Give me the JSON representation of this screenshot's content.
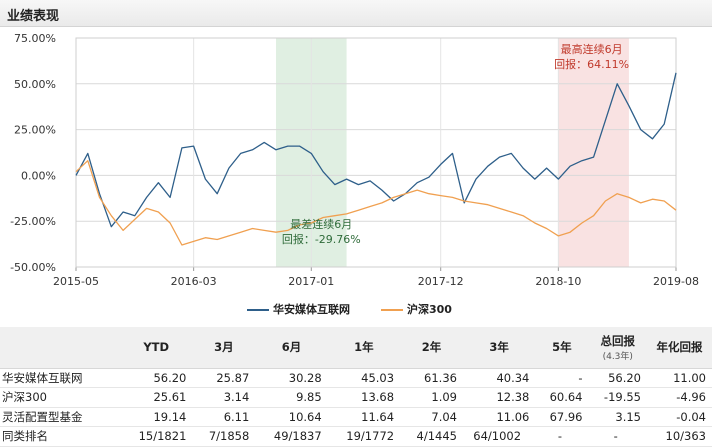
{
  "section_title": "业绩表现",
  "chart_data": {
    "type": "line",
    "y_ticks": [
      "75.00%",
      "50.00%",
      "25.00%",
      "0.00%",
      "-25.00%",
      "-50.00%"
    ],
    "y_tick_values": [
      75,
      50,
      25,
      0,
      -25,
      -50
    ],
    "ylim": [
      -50,
      75
    ],
    "x_ticks": [
      "2015-05",
      "2016-03",
      "2017-01",
      "2017-12",
      "2018-10",
      "2019-08"
    ],
    "x_tick_values": [
      "2015-05",
      "2016-03",
      "2017-01",
      "2017-12",
      "2018-10",
      "2019-08"
    ],
    "xlim": [
      "2015-05",
      "2019-08"
    ],
    "grid": true,
    "legend_position": "bottom",
    "series": [
      {
        "name": "华安媒体互联网",
        "color": "#2e5f8a",
        "points": [
          [
            "2015-05",
            0
          ],
          [
            "2015-06",
            12
          ],
          [
            "2015-07",
            -10
          ],
          [
            "2015-08",
            -28
          ],
          [
            "2015-09",
            -20
          ],
          [
            "2015-10",
            -22
          ],
          [
            "2015-11",
            -12
          ],
          [
            "2015-12",
            -4
          ],
          [
            "2016-01",
            -12
          ],
          [
            "2016-02",
            15
          ],
          [
            "2016-03",
            16
          ],
          [
            "2016-04",
            -2
          ],
          [
            "2016-05",
            -10
          ],
          [
            "2016-06",
            4
          ],
          [
            "2016-07",
            12
          ],
          [
            "2016-08",
            14
          ],
          [
            "2016-09",
            18
          ],
          [
            "2016-10",
            14
          ],
          [
            "2016-11",
            16
          ],
          [
            "2016-12",
            16
          ],
          [
            "2017-01",
            12
          ],
          [
            "2017-02",
            2
          ],
          [
            "2017-03",
            -5
          ],
          [
            "2017-04",
            -2
          ],
          [
            "2017-05",
            -5
          ],
          [
            "2017-06",
            -3
          ],
          [
            "2017-07",
            -8
          ],
          [
            "2017-08",
            -14
          ],
          [
            "2017-09",
            -10
          ],
          [
            "2017-10",
            -4
          ],
          [
            "2017-11",
            -1
          ],
          [
            "2017-12",
            6
          ],
          [
            "2018-01",
            12
          ],
          [
            "2018-02",
            -15
          ],
          [
            "2018-03",
            -2
          ],
          [
            "2018-04",
            5
          ],
          [
            "2018-05",
            10
          ],
          [
            "2018-06",
            12
          ],
          [
            "2018-07",
            4
          ],
          [
            "2018-08",
            -2
          ],
          [
            "2018-09",
            4
          ],
          [
            "2018-10",
            -2
          ],
          [
            "2018-11",
            5
          ],
          [
            "2018-12",
            8
          ],
          [
            "2019-01",
            10
          ],
          [
            "2019-02",
            30
          ],
          [
            "2019-03",
            50
          ],
          [
            "2019-04",
            38
          ],
          [
            "2019-05",
            25
          ],
          [
            "2019-06",
            20
          ],
          [
            "2019-07",
            28
          ],
          [
            "2019-08",
            56
          ]
        ]
      },
      {
        "name": "沪深300",
        "color": "#f0a050",
        "points": [
          [
            "2015-05",
            2
          ],
          [
            "2015-06",
            8
          ],
          [
            "2015-07",
            -12
          ],
          [
            "2015-08",
            -22
          ],
          [
            "2015-09",
            -30
          ],
          [
            "2015-10",
            -24
          ],
          [
            "2015-11",
            -18
          ],
          [
            "2015-12",
            -20
          ],
          [
            "2016-01",
            -26
          ],
          [
            "2016-02",
            -38
          ],
          [
            "2016-03",
            -36
          ],
          [
            "2016-04",
            -34
          ],
          [
            "2016-05",
            -35
          ],
          [
            "2016-06",
            -33
          ],
          [
            "2016-07",
            -31
          ],
          [
            "2016-08",
            -29
          ],
          [
            "2016-09",
            -30
          ],
          [
            "2016-10",
            -31
          ],
          [
            "2016-11",
            -30
          ],
          [
            "2016-12",
            -27
          ],
          [
            "2017-01",
            -26
          ],
          [
            "2017-02",
            -23
          ],
          [
            "2017-03",
            -22
          ],
          [
            "2017-04",
            -21
          ],
          [
            "2017-05",
            -19
          ],
          [
            "2017-06",
            -17
          ],
          [
            "2017-07",
            -15
          ],
          [
            "2017-08",
            -12
          ],
          [
            "2017-09",
            -10
          ],
          [
            "2017-10",
            -8
          ],
          [
            "2017-11",
            -10
          ],
          [
            "2017-12",
            -11
          ],
          [
            "2018-01",
            -12
          ],
          [
            "2018-02",
            -14
          ],
          [
            "2018-03",
            -15
          ],
          [
            "2018-04",
            -16
          ],
          [
            "2018-05",
            -18
          ],
          [
            "2018-06",
            -20
          ],
          [
            "2018-07",
            -22
          ],
          [
            "2018-08",
            -26
          ],
          [
            "2018-09",
            -29
          ],
          [
            "2018-10",
            -33
          ],
          [
            "2018-11",
            -31
          ],
          [
            "2018-12",
            -26
          ],
          [
            "2019-01",
            -22
          ],
          [
            "2019-02",
            -14
          ],
          [
            "2019-03",
            -10
          ],
          [
            "2019-04",
            -12
          ],
          [
            "2019-05",
            -15
          ],
          [
            "2019-06",
            -13
          ],
          [
            "2019-07",
            -14
          ],
          [
            "2019-08",
            -19
          ]
        ]
      }
    ],
    "bands": [
      {
        "from": "2016-10",
        "to": "2017-04",
        "color": "#e0efe2",
        "label_line1": "最差连续6月",
        "label_line2": "回报：-29.76%",
        "label_color": "#2f6b3a"
      },
      {
        "from": "2018-10",
        "to": "2019-04",
        "color": "#f9e2e2",
        "label_line1": "最高连续6月",
        "label_line2": "回报：64.11%",
        "label_color": "#c0392b"
      }
    ]
  },
  "table": {
    "headers": [
      "",
      "YTD",
      "3月",
      "6月",
      "1年",
      "2年",
      "3年",
      "5年",
      "总回报",
      "年化回报"
    ],
    "total_return_sub": "(4.3年)",
    "rows": [
      {
        "name": "华安媒体互联网",
        "cells": [
          "56.20",
          "25.87",
          "30.28",
          "45.03",
          "61.36",
          "40.34",
          "-",
          "56.20",
          "11.00"
        ]
      },
      {
        "name": "沪深300",
        "cells": [
          "25.61",
          "3.14",
          "9.85",
          "13.68",
          "1.09",
          "12.38",
          "60.64",
          "-19.55",
          "-4.96"
        ]
      },
      {
        "name": "灵活配置型基金",
        "cells": [
          "19.14",
          "6.11",
          "10.64",
          "11.64",
          "7.04",
          "11.06",
          "67.96",
          "3.15",
          "-0.04"
        ]
      },
      {
        "name": "同类排名",
        "cells": [
          "15/1821",
          "7/1858",
          "49/1837",
          "19/1772",
          "4/1445",
          "64/1002",
          "-",
          "-",
          "10/363"
        ]
      }
    ]
  }
}
